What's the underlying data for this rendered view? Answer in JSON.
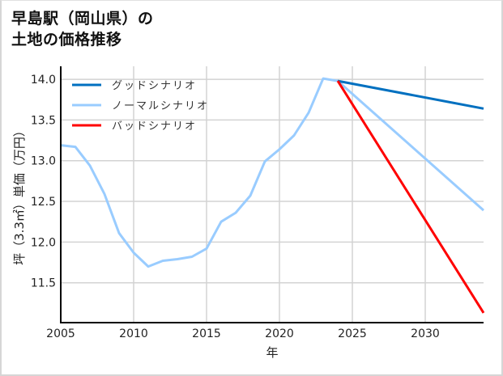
{
  "title": {
    "line1": "早島駅（岡山県）の",
    "line2": "土地の価格推移"
  },
  "chart_data": {
    "type": "line",
    "title": "早島駅（岡山県）の土地の価格推移",
    "xlabel": "年",
    "ylabel": "坪（3.3㎡）単価（万円）",
    "xlim": [
      2005,
      2034
    ],
    "ylim": [
      11.01,
      14.16
    ],
    "x_ticks": [
      2005,
      2010,
      2015,
      2020,
      2025,
      2030
    ],
    "y_ticks": [
      11.5,
      12.0,
      12.5,
      13.0,
      13.5,
      14.0
    ],
    "y_tick_labels": [
      "11.5",
      "12.0",
      "12.5",
      "13.0",
      "13.5",
      "14.0"
    ],
    "grid": true,
    "legend_position": "upper left",
    "series": [
      {
        "name": "グッドシナリオ",
        "color": "#0070c0",
        "x": [
          2024,
          2034
        ],
        "values": [
          13.98,
          13.64
        ]
      },
      {
        "name": "ノーマルシナリオ",
        "color": "#99ccff",
        "x": [
          2005,
          2006,
          2007,
          2008,
          2009,
          2010,
          2011,
          2012,
          2013,
          2014,
          2015,
          2016,
          2017,
          2018,
          2019,
          2020,
          2021,
          2022,
          2023,
          2024,
          2034
        ],
        "values": [
          13.19,
          13.17,
          12.94,
          12.59,
          12.11,
          11.87,
          11.7,
          11.77,
          11.79,
          11.82,
          11.92,
          12.25,
          12.36,
          12.57,
          12.99,
          13.14,
          13.31,
          13.59,
          14.01,
          13.98,
          12.39
        ]
      },
      {
        "name": "バッドシナリオ",
        "color": "#ff0000",
        "x": [
          2024,
          2034
        ],
        "values": [
          13.98,
          11.13
        ]
      }
    ]
  }
}
